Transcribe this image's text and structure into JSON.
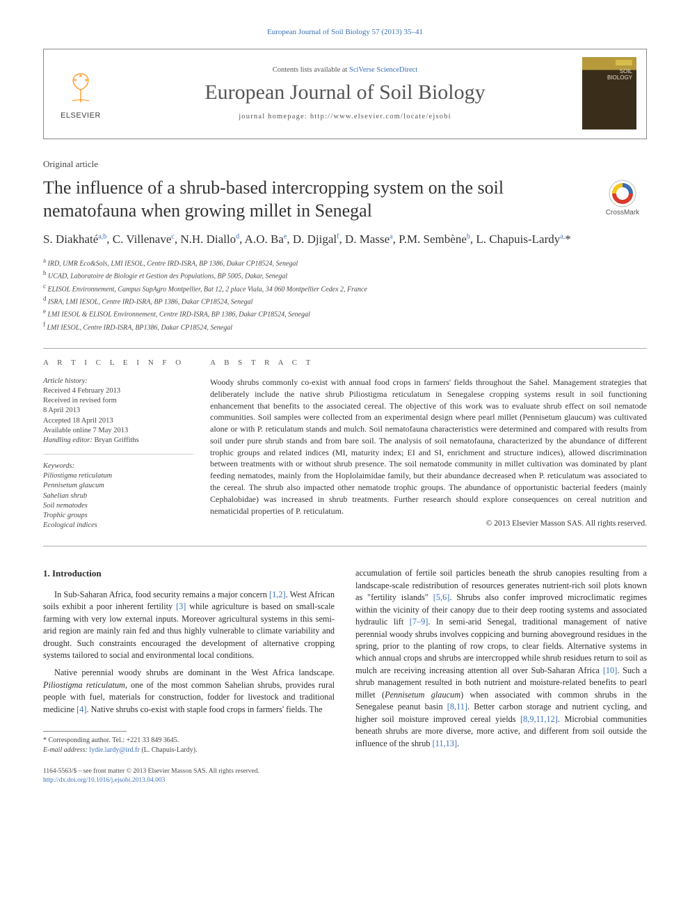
{
  "journal_link": "European Journal of Soil Biology 57 (2013) 35–41",
  "masthead": {
    "contents_prefix": "Contents lists available at ",
    "contents_link": "SciVerse ScienceDirect",
    "journal_name": "European Journal of Soil Biology",
    "homepage_prefix": "journal homepage: ",
    "homepage_url": "http://www.elsevier.com/locate/ejsobi",
    "publisher": "ELSEVIER"
  },
  "article_type": "Original article",
  "title": "The influence of a shrub-based intercropping system on the soil nematofauna when growing millet in Senegal",
  "crossmark_label": "CrossMark",
  "authors_html": "S. Diakhaté<sup>a,b</sup>, C. Villenave<sup>c</sup>, N.H. Diallo<sup>d</sup>, A.O. Ba<sup>e</sup>, D. Djigal<sup>f</sup>, D. Masse<sup>a</sup>, P.M. Sembène<sup>b</sup>, L. Chapuis-Lardy<sup>a,</sup>*",
  "affiliations": [
    "a IRD, UMR Eco&Sols, LMI IESOL, Centre IRD-ISRA, BP 1386, Dakar CP18524, Senegal",
    "b UCAD, Laboratoire de Biologie et Gestion des Populations, BP 5005, Dakar, Senegal",
    "c ELISOL Environnement, Campus SupAgro Montpellier, Bat 12, 2 place Viala, 34 060 Montpellier Cedex 2, France",
    "d ISRA, LMI IESOL, Centre IRD-ISRA, BP 1386, Dakar CP18524, Senegal",
    "e LMI IESOL & ELISOL Environnement, Centre IRD-ISRA, BP 1386, Dakar CP18524, Senegal",
    "f LMI IESOL, Centre IRD-ISRA, BP1386, Dakar CP18524, Senegal"
  ],
  "article_info": {
    "head": "A R T I C L E  I N F O",
    "history_label": "Article history:",
    "history": [
      "Received 4 February 2013",
      "Received in revised form",
      "8 April 2013",
      "Accepted 18 April 2013",
      "Available online 7 May 2013"
    ],
    "handling_editor_label": "Handling editor:",
    "handling_editor": "Bryan Griffiths",
    "keywords_label": "Keywords:",
    "keywords": [
      "Piliostigma reticulatum",
      "Pennisetum glaucum",
      "Sahelian shrub",
      "Soil nematodes",
      "Trophic groups",
      "Ecological indices"
    ]
  },
  "abstract": {
    "head": "A B S T R A C T",
    "text": "Woody shrubs commonly co-exist with annual food crops in farmers' fields throughout the Sahel. Management strategies that deliberately include the native shrub Piliostigma reticulatum in Senegalese cropping systems result in soil functioning enhancement that benefits to the associated cereal. The objective of this work was to evaluate shrub effect on soil nematode communities. Soil samples were collected from an experimental design where pearl millet (Pennisetum glaucum) was cultivated alone or with P. reticulatum stands and mulch. Soil nematofauna characteristics were determined and compared with results from soil under pure shrub stands and from bare soil. The analysis of soil nematofauna, characterized by the abundance of different trophic groups and related indices (MI, maturity index; EI and SI, enrichment and structure indices), allowed discrimination between treatments with or without shrub presence. The soil nematode community in millet cultivation was dominated by plant feeding nematodes, mainly from the Hoplolaimidae family, but their abundance decreased when P. reticulatum was associated to the cereal. The shrub also impacted other nematode trophic groups. The abundance of opportunistic bacterial feeders (mainly Cephalobidae) was increased in shrub treatments. Further research should explore consequences on cereal nutrition and nematicidal properties of P. reticulatum.",
    "copyright": "© 2013 Elsevier Masson SAS. All rights reserved."
  },
  "intro": {
    "heading": "1. Introduction",
    "p1_a": "In Sub-Saharan Africa, food security remains a major concern ",
    "p1_ref1": "[1,2]",
    "p1_b": ". West African soils exhibit a poor inherent fertility ",
    "p1_ref2": "[3]",
    "p1_c": " while agriculture is based on small-scale farming with very low external inputs. Moreover agricultural systems in this semi-arid region are mainly rain fed and thus highly vulnerable to climate variability and drought. Such constraints encouraged the development of alternative cropping systems tailored to social and environmental local conditions.",
    "p2_a": "Native perennial woody shrubs are dominant in the West Africa landscape. ",
    "p2_i": "Piliostigma reticulatum",
    "p2_b": ", one of the most common Sahelian shrubs, provides rural people with fuel, materials for construction, fodder for livestock and traditional medicine ",
    "p2_ref": "[4]",
    "p2_c": ". Native shrubs co-exist with staple food crops in farmers' fields. The",
    "p3_a": "accumulation of fertile soil particles beneath the shrub canopies resulting from a landscape-scale redistribution of resources generates nutrient-rich soil plots known as \"fertility islands\" ",
    "p3_ref1": "[5,6]",
    "p3_b": ". Shrubs also confer improved microclimatic regimes within the vicinity of their canopy due to their deep rooting systems and associated hydraulic lift ",
    "p3_ref2": "[7–9]",
    "p3_c": ". In semi-arid Senegal, traditional management of native perennial woody shrubs involves coppicing and burning aboveground residues in the spring, prior to the planting of row crops, to clear fields. Alternative systems in which annual crops and shrubs are intercropped while shrub residues return to soil as mulch are receiving increasing attention all over Sub-Saharan Africa ",
    "p3_ref3": "[10]",
    "p3_d": ". Such a shrub management resulted in both nutrient and moisture-related benefits to pearl millet (",
    "p3_i": "Pennisetum glaucum",
    "p3_e": ") when associated with common shrubs in the Senegalese peanut basin ",
    "p3_ref4": "[8,11]",
    "p3_f": ". Better carbon storage and nutrient cycling, and higher soil moisture improved cereal yields ",
    "p3_ref5": "[8,9,11,12]",
    "p3_g": ". Microbial communities beneath shrubs are more diverse, more active, and different from soil outside the influence of the shrub ",
    "p3_ref6": "[11,13]",
    "p3_h": "."
  },
  "footnote": {
    "corr_label": "* Corresponding author. Tel.: ",
    "phone": "+221 33 849 3645.",
    "email_label": "E-mail address: ",
    "email": "lydie.lardy@ird.fr",
    "email_tail": " (L. Chapuis-Lardy)."
  },
  "doi": {
    "line1": "1164-5563/$ – see front matter © 2013 Elsevier Masson SAS. All rights reserved.",
    "url": "http://dx.doi.org/10.1016/j.ejsobi.2013.04.003"
  },
  "colors": {
    "link": "#3b6fb6",
    "text": "#2a2a2a",
    "muted": "#555555",
    "rule": "#aaaaaa",
    "elsevier_orange": "#ff8a00",
    "crossmark_yellow": "#f5c518",
    "crossmark_red": "#d93a2b",
    "crossmark_blue": "#3b6fb6"
  }
}
